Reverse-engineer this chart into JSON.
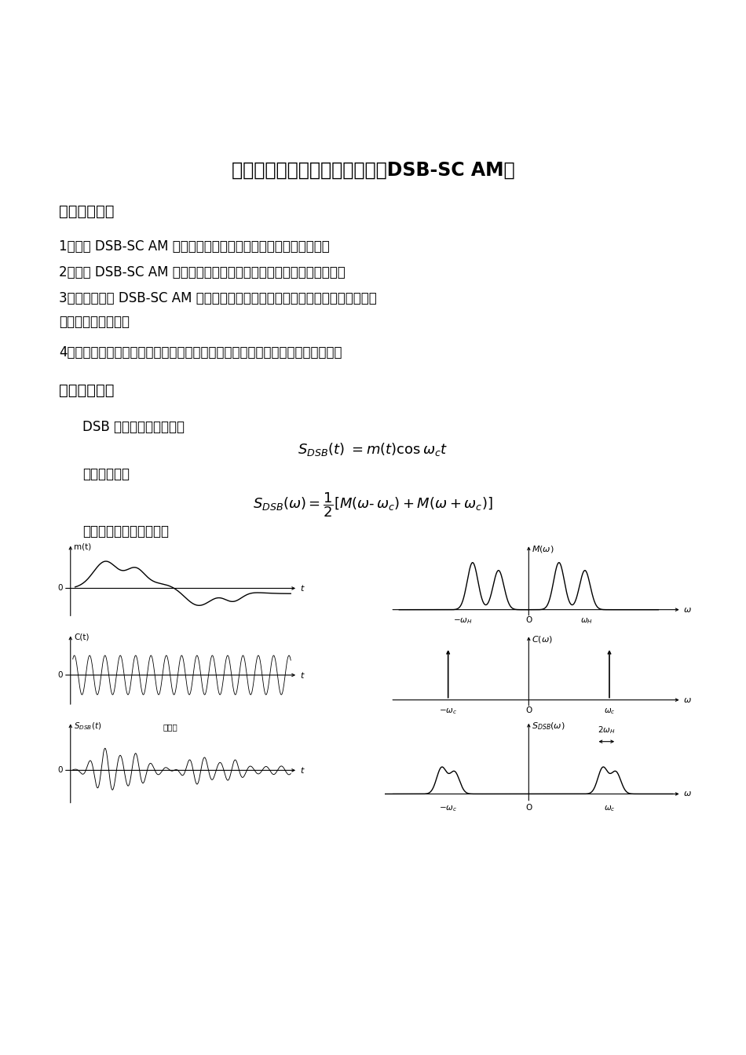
{
  "title": "实验一：双边带抑制载波调幅（DSB-SC AM）",
  "section1_title": "一、实验目的",
  "item1": "1、了解 DSB-SC AM 信号的产生以及相干解调的原理和实现方法。",
  "item2": "2、了解 DSB-SC AM 信号波形以及振幅频谱特点，并掌握其测量方法。",
  "item3a": "3、了解在发送 DSB-SC AM 信号加导频分量的条件下，收端用锁相环提取载波的",
  "item3b": "原理及其实现方法。",
  "item4": "4、掌握锁相环的同步带和捕捉带的测量方法，掌握锁相环提取载波的调试方法。",
  "section2_title": "二、实验原理",
  "dsb_text1": "DSB 信号的时域表达式为",
  "dsb_text2": "频域表达式为",
  "dsb_text3": "其波形和频谱如下图所示",
  "bg_color": "#ffffff"
}
